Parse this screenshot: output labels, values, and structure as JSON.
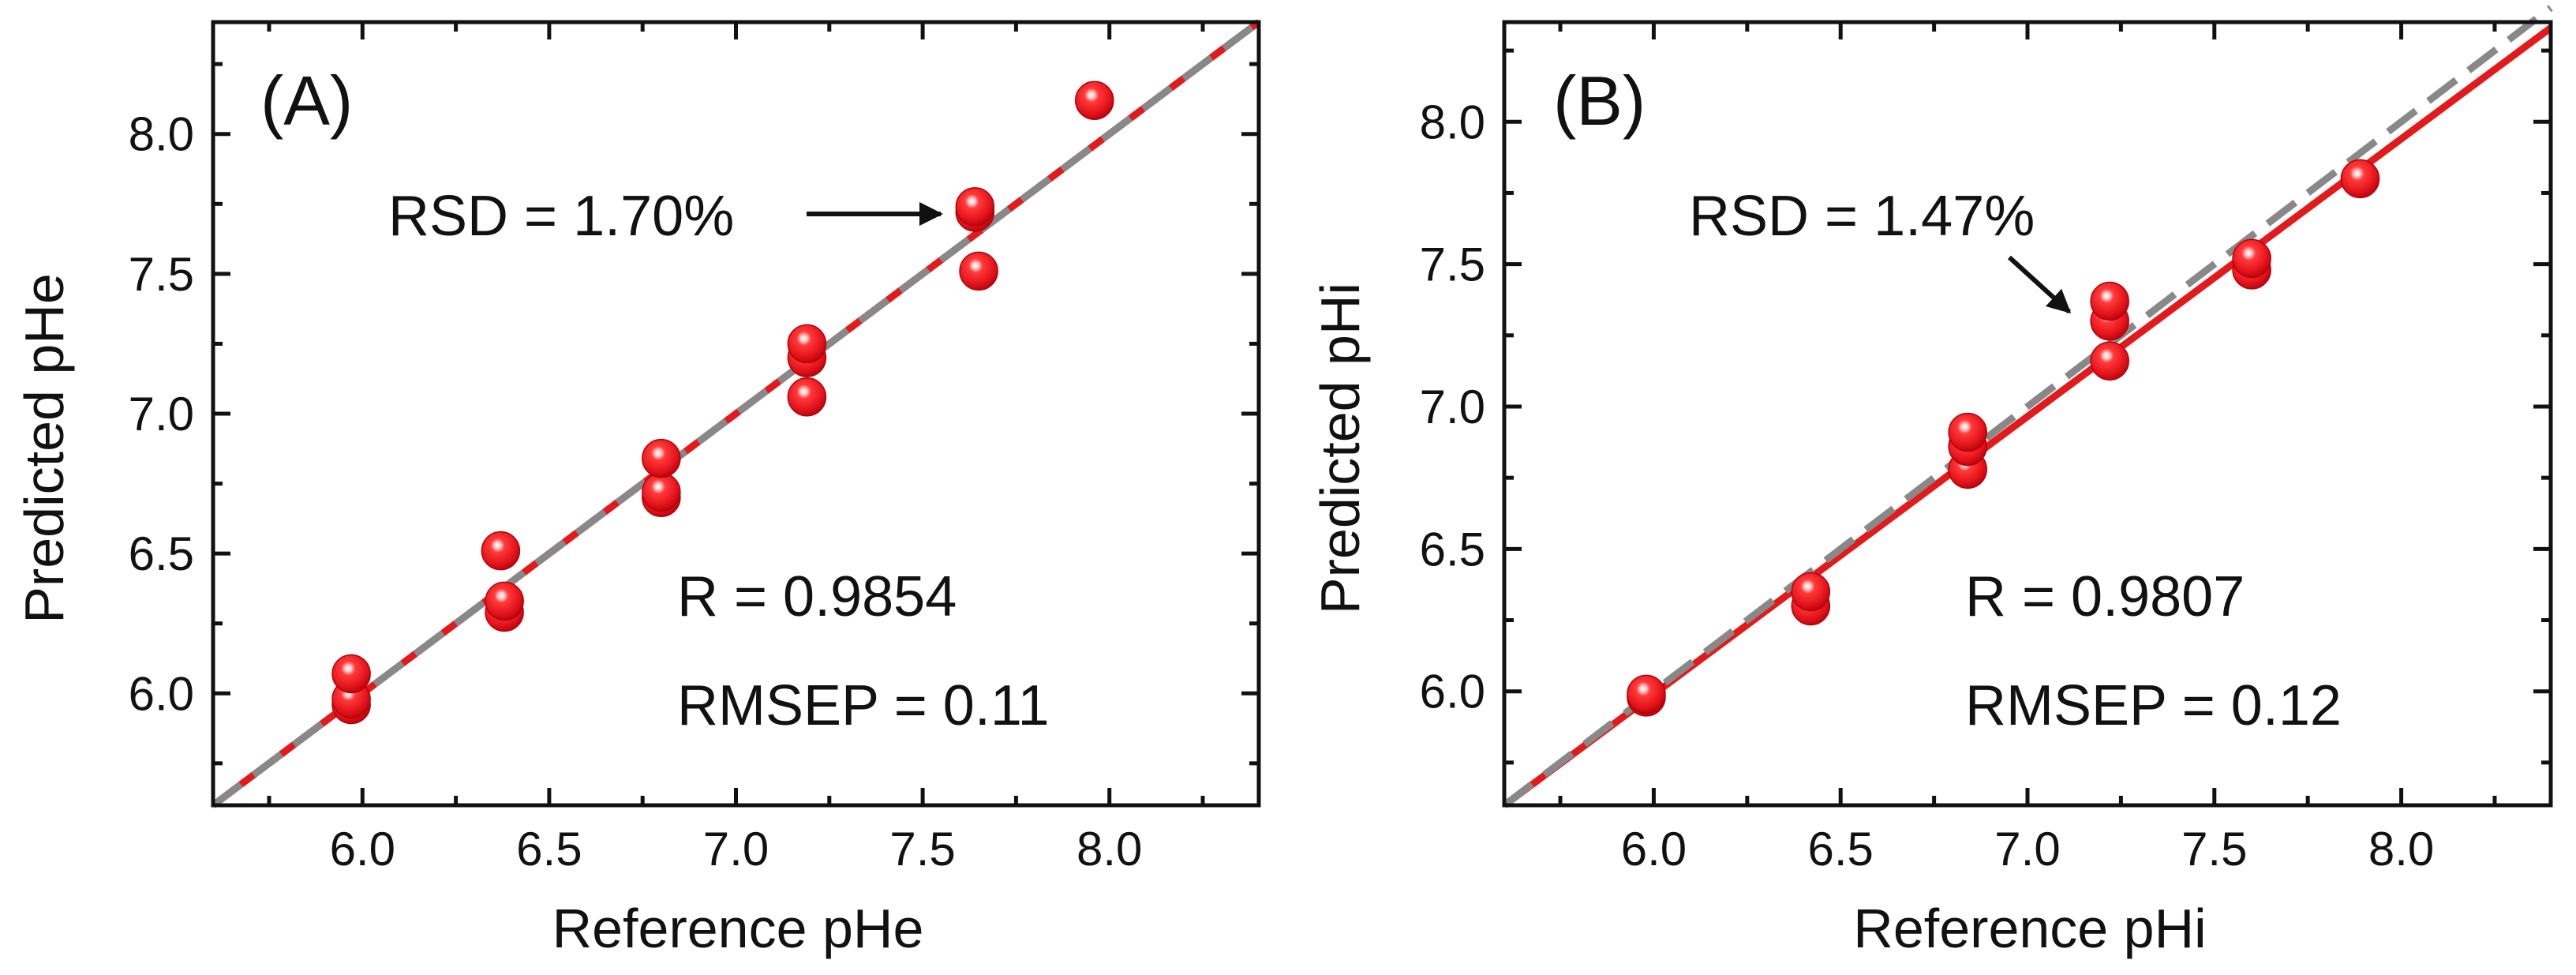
{
  "chart_data": [
    {
      "type": "scatter",
      "panel_label": "(A)",
      "xlabel": "Reference pHe",
      "ylabel": "Predicted pHe",
      "xlim": [
        5.6,
        8.4
      ],
      "ylim": [
        5.6,
        8.4
      ],
      "xticks": [
        6.0,
        6.5,
        7.0,
        7.5,
        8.0
      ],
      "yticks": [
        6.0,
        6.5,
        7.0,
        7.5,
        8.0
      ],
      "tick_labels": [
        "6.0",
        "6.5",
        "7.0",
        "7.5",
        "8.0"
      ],
      "points": [
        {
          "x": 5.97,
          "y": 5.96
        },
        {
          "x": 5.97,
          "y": 5.98
        },
        {
          "x": 5.97,
          "y": 6.07
        },
        {
          "x": 6.38,
          "y": 6.29
        },
        {
          "x": 6.38,
          "y": 6.33
        },
        {
          "x": 6.37,
          "y": 6.51
        },
        {
          "x": 6.8,
          "y": 6.7
        },
        {
          "x": 6.8,
          "y": 6.72
        },
        {
          "x": 6.8,
          "y": 6.84
        },
        {
          "x": 7.19,
          "y": 7.06
        },
        {
          "x": 7.19,
          "y": 7.2
        },
        {
          "x": 7.19,
          "y": 7.25
        },
        {
          "x": 7.65,
          "y": 7.51
        },
        {
          "x": 7.64,
          "y": 7.72
        },
        {
          "x": 7.64,
          "y": 7.74
        },
        {
          "x": 7.96,
          "y": 8.12
        }
      ],
      "fit_line": {
        "color": "#e31a1c",
        "points": [
          [
            5.6,
            5.6
          ],
          [
            8.4,
            8.4
          ]
        ]
      },
      "identity_line": {
        "color": "#888888",
        "style": "dashed",
        "points": [
          [
            5.6,
            5.6
          ],
          [
            8.4,
            8.4
          ]
        ]
      },
      "marker_color": "#e8141c",
      "annotations": {
        "rsd": "RSD = 1.70%",
        "r": "R = 0.9854",
        "rmsep": "RMSEP = 0.11"
      }
    },
    {
      "type": "scatter",
      "panel_label": "(B)",
      "xlabel": "Reference pHi",
      "ylabel": "Predicted pHi",
      "xlim": [
        5.6,
        8.4
      ],
      "ylim": [
        5.6,
        8.35
      ],
      "xticks": [
        6.0,
        6.5,
        7.0,
        7.5,
        8.0
      ],
      "yticks": [
        6.0,
        6.5,
        7.0,
        7.5,
        8.0
      ],
      "tick_labels": [
        "6.0",
        "6.5",
        "7.0",
        "7.5",
        "8.0"
      ],
      "points": [
        {
          "x": 5.98,
          "y": 5.98
        },
        {
          "x": 5.98,
          "y": 5.99
        },
        {
          "x": 6.42,
          "y": 6.3
        },
        {
          "x": 6.42,
          "y": 6.35
        },
        {
          "x": 6.84,
          "y": 6.78
        },
        {
          "x": 6.84,
          "y": 6.86
        },
        {
          "x": 6.84,
          "y": 6.91
        },
        {
          "x": 7.22,
          "y": 7.16
        },
        {
          "x": 7.22,
          "y": 7.3
        },
        {
          "x": 7.22,
          "y": 7.37
        },
        {
          "x": 7.6,
          "y": 7.48
        },
        {
          "x": 7.6,
          "y": 7.52
        },
        {
          "x": 7.89,
          "y": 7.8
        }
      ],
      "fit_line": {
        "color": "#e31a1c",
        "points": [
          [
            5.6,
            5.6
          ],
          [
            8.4,
            8.33
          ]
        ]
      },
      "identity_line": {
        "color": "#888888",
        "style": "dashed",
        "points": [
          [
            5.6,
            5.6
          ],
          [
            8.4,
            8.4
          ]
        ]
      },
      "marker_color": "#e8141c",
      "annotations": {
        "rsd": "RSD = 1.47%",
        "r": "R = 0.9807",
        "rmsep": "RMSEP = 0.12"
      }
    }
  ]
}
